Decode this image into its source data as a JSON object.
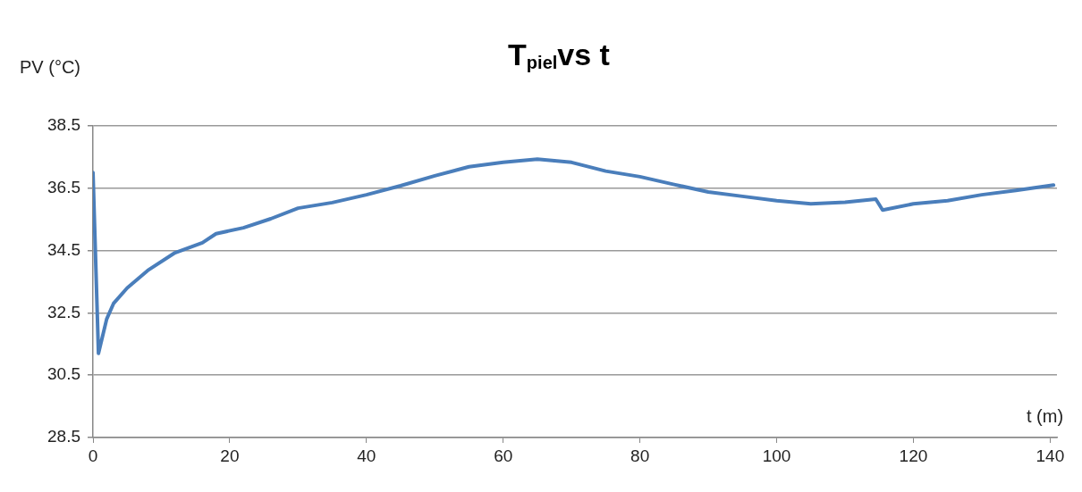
{
  "chart_data": {
    "type": "line",
    "title": "T$_{piel}$vs t",
    "xlabel": "t (m)",
    "ylabel": "PV (°C)",
    "xlim": [
      0,
      141
    ],
    "xticks": [
      0,
      20,
      40,
      60,
      80,
      100,
      120,
      140
    ],
    "ylim": [
      28.5,
      38.5
    ],
    "yticks": [
      28.5,
      30.5,
      32.5,
      34.5,
      36.5,
      38.5
    ],
    "grid": "y",
    "legend": false,
    "marker": "none",
    "line_style": "solid",
    "series": [
      {
        "color": "#4a7ebb",
        "x": [
          0,
          0.8,
          2,
          3,
          5,
          8,
          12,
          16,
          18,
          22,
          26,
          30,
          35,
          40,
          45,
          50,
          55,
          60,
          65,
          70,
          75,
          80,
          85,
          90,
          95,
          100,
          105,
          110,
          114.5,
          115.5,
          120,
          125,
          130,
          135,
          140.5
        ],
        "values": [
          37.0,
          31.2,
          32.3,
          32.8,
          33.3,
          33.86,
          34.43,
          34.75,
          35.04,
          35.23,
          35.52,
          35.86,
          36.04,
          36.29,
          36.58,
          36.9,
          37.19,
          37.33,
          37.43,
          37.33,
          37.05,
          36.87,
          36.62,
          36.38,
          36.24,
          36.1,
          36.0,
          36.05,
          36.15,
          35.8,
          36.0,
          36.1,
          36.29,
          36.43,
          36.6
        ]
      }
    ]
  }
}
